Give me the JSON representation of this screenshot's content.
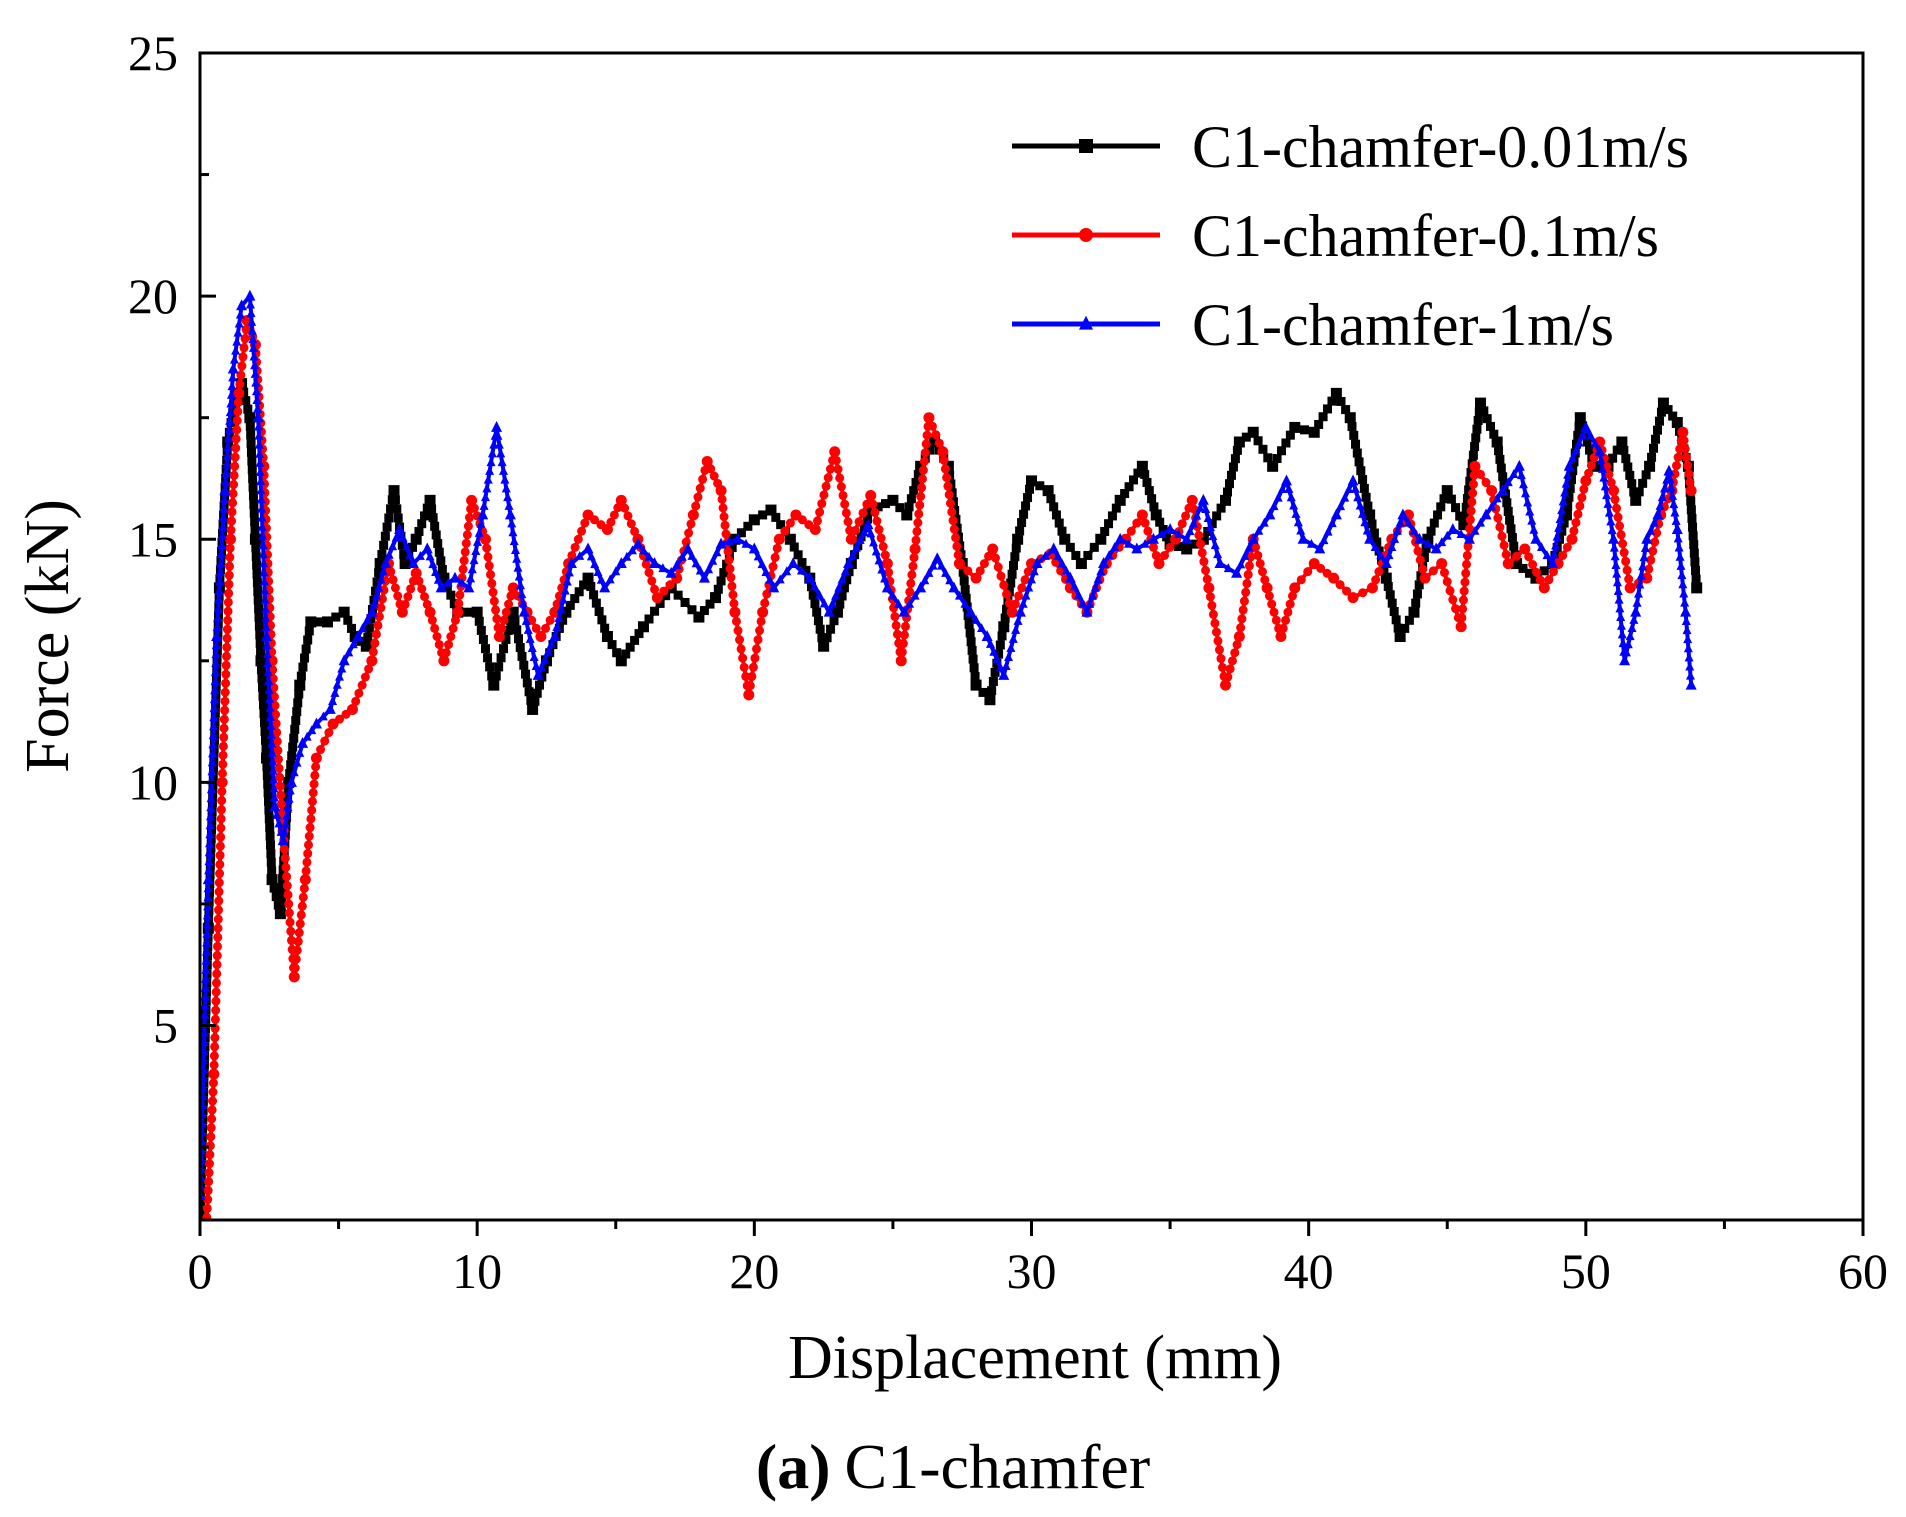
{
  "chart_data": {
    "type": "line",
    "title": "",
    "xlabel": "Displacement (mm)",
    "ylabel": "Force (kN)",
    "xlim": [
      0,
      60
    ],
    "ylim": [
      1,
      25
    ],
    "xticks": [
      0,
      10,
      20,
      30,
      40,
      50,
      60
    ],
    "yticks": [
      5,
      10,
      15,
      20,
      25
    ],
    "grid": false,
    "legend_position": "top-right",
    "caption": {
      "label": "(a)",
      "text": "C1-chamfer"
    },
    "series": [
      {
        "name": "C1-chamfer-0.01m/s",
        "color": "#000000",
        "marker": "square",
        "x": [
          0,
          0.3,
          0.7,
          1.0,
          1.3,
          1.5,
          1.8,
          2.0,
          2.2,
          2.4,
          2.6,
          2.9,
          3.2,
          3.6,
          4.0,
          4.6,
          5.2,
          5.6,
          6.0,
          6.5,
          7.0,
          7.4,
          7.8,
          8.3,
          8.8,
          9.3,
          10.0,
          10.6,
          11.3,
          12.0,
          12.5,
          13.2,
          14.0,
          14.7,
          15.2,
          16.0,
          17.0,
          18.0,
          18.6,
          19.3,
          20.0,
          20.6,
          21.3,
          22.0,
          22.5,
          23.0,
          23.5,
          24.2,
          25.0,
          25.5,
          26.0,
          26.5,
          27.0,
          27.5,
          28.0,
          28.5,
          29.0,
          29.5,
          30.0,
          30.6,
          31.2,
          31.8,
          32.5,
          33.2,
          34.0,
          34.5,
          35.0,
          35.6,
          36.2,
          37.0,
          37.5,
          38.0,
          38.7,
          39.5,
          40.2,
          41.0,
          41.5,
          42.2,
          42.8,
          43.3,
          43.8,
          44.3,
          45.0,
          45.6,
          46.2,
          46.8,
          47.5,
          48.2,
          48.8,
          49.3,
          49.8,
          50.3,
          50.8,
          51.3,
          51.8,
          52.3,
          52.8,
          53.3,
          53.7,
          54.0
        ],
        "y": [
          1.0,
          7.0,
          14.0,
          17.0,
          18.0,
          18.2,
          17.5,
          15.0,
          12.5,
          10.5,
          8.0,
          7.3,
          10.0,
          12.0,
          13.3,
          13.3,
          13.5,
          13.0,
          12.8,
          14.5,
          16.0,
          14.5,
          15.0,
          15.8,
          14.2,
          13.5,
          13.5,
          12.0,
          13.5,
          11.5,
          12.5,
          13.5,
          14.2,
          13.0,
          12.5,
          13.2,
          14.0,
          13.4,
          13.8,
          15.0,
          15.4,
          15.6,
          15.0,
          14.2,
          12.8,
          13.5,
          14.5,
          15.6,
          15.8,
          15.5,
          16.5,
          17.0,
          16.5,
          14.5,
          12.0,
          11.7,
          13.2,
          15.0,
          16.2,
          16.0,
          15.0,
          14.5,
          15.0,
          15.8,
          16.5,
          15.5,
          14.9,
          14.8,
          15.0,
          15.8,
          17.0,
          17.2,
          16.5,
          17.3,
          17.2,
          18.0,
          17.5,
          15.5,
          14.2,
          13.0,
          13.5,
          15.0,
          16.0,
          15.3,
          17.8,
          17.0,
          14.5,
          14.2,
          14.5,
          15.5,
          17.5,
          16.5,
          16.5,
          17.0,
          15.8,
          16.5,
          17.8,
          17.4,
          16.5,
          14.0
        ]
      },
      {
        "name": "C1-chamfer-0.1m/s",
        "color": "#ff0000",
        "marker": "circle",
        "x": [
          0.2,
          0.5,
          0.8,
          1.1,
          1.4,
          1.7,
          2.0,
          2.3,
          2.6,
          3.0,
          3.4,
          3.8,
          4.2,
          4.8,
          5.5,
          6.2,
          6.8,
          7.3,
          7.8,
          8.3,
          8.8,
          9.3,
          9.8,
          10.3,
          10.8,
          11.3,
          11.8,
          12.3,
          12.8,
          13.3,
          14.0,
          14.7,
          15.2,
          15.8,
          16.5,
          17.2,
          17.8,
          18.3,
          18.8,
          19.3,
          19.8,
          20.3,
          20.9,
          21.5,
          22.2,
          22.9,
          23.5,
          24.2,
          24.8,
          25.3,
          25.8,
          26.3,
          26.8,
          27.4,
          28.0,
          28.6,
          29.3,
          30.0,
          30.7,
          31.4,
          32.0,
          32.7,
          33.4,
          34.0,
          34.6,
          35.2,
          35.8,
          36.4,
          37.0,
          37.5,
          38.0,
          38.5,
          39.0,
          39.5,
          40.2,
          40.9,
          41.6,
          42.3,
          43.0,
          43.6,
          44.2,
          44.8,
          45.5,
          46.0,
          46.6,
          47.2,
          47.8,
          48.5,
          49.0,
          49.5,
          50.0,
          50.5,
          51.0,
          51.6,
          52.2,
          52.7,
          53.1,
          53.5,
          53.8
        ],
        "y": [
          0.5,
          4.0,
          10.0,
          15.0,
          18.0,
          19.5,
          19.0,
          16.5,
          12.5,
          9.0,
          6.0,
          8.0,
          10.5,
          11.2,
          11.5,
          12.5,
          14.5,
          13.5,
          14.3,
          13.5,
          12.5,
          13.5,
          15.8,
          15.0,
          13.0,
          14.0,
          13.5,
          13.0,
          13.5,
          14.5,
          15.5,
          15.2,
          15.8,
          15.0,
          13.8,
          14.2,
          15.5,
          16.6,
          16.0,
          13.5,
          11.8,
          13.5,
          15.0,
          15.5,
          15.2,
          16.8,
          15.0,
          15.9,
          14.5,
          12.5,
          14.8,
          17.5,
          16.8,
          14.5,
          14.2,
          14.8,
          13.5,
          14.5,
          14.7,
          14.0,
          13.5,
          14.5,
          15.0,
          15.5,
          14.5,
          15.0,
          15.8,
          14.0,
          12.0,
          13.0,
          15.0,
          14.0,
          13.0,
          14.0,
          14.5,
          14.2,
          13.8,
          14.0,
          15.0,
          15.5,
          14.2,
          14.5,
          13.2,
          16.5,
          16.0,
          14.5,
          14.8,
          14.0,
          14.5,
          15.0,
          16.2,
          17.0,
          16.0,
          14.0,
          14.2,
          15.5,
          16.0,
          17.2,
          16.0
        ]
      },
      {
        "name": "C1-chamfer-1m/s",
        "color": "#0000ff",
        "marker": "triangle",
        "x": [
          0,
          0.3,
          0.6,
          0.9,
          1.2,
          1.5,
          1.8,
          2.1,
          2.4,
          2.7,
          3.0,
          3.3,
          3.7,
          4.2,
          4.7,
          5.2,
          5.7,
          6.2,
          6.7,
          7.2,
          7.7,
          8.2,
          8.7,
          9.2,
          9.7,
          10.2,
          10.7,
          11.2,
          11.7,
          12.2,
          12.8,
          13.4,
          14.0,
          14.6,
          15.2,
          15.8,
          16.4,
          17.0,
          17.6,
          18.2,
          18.8,
          19.4,
          20.0,
          20.7,
          21.4,
          22.0,
          22.7,
          23.4,
          24.1,
          24.8,
          25.4,
          26.0,
          26.6,
          27.2,
          27.8,
          28.4,
          29.0,
          29.6,
          30.2,
          30.8,
          31.4,
          32.0,
          32.6,
          33.2,
          33.8,
          34.4,
          35.0,
          35.6,
          36.2,
          36.8,
          37.4,
          38.0,
          38.6,
          39.2,
          39.8,
          40.4,
          41.0,
          41.6,
          42.2,
          42.8,
          43.4,
          44.0,
          44.6,
          45.2,
          45.8,
          46.4,
          47.0,
          47.6,
          48.2,
          48.8,
          49.4,
          50.0,
          50.5,
          51.0,
          51.4,
          51.8,
          52.2,
          52.6,
          53.0,
          53.3,
          53.6,
          53.8
        ],
        "y": [
          1.5,
          8.0,
          13.0,
          16.0,
          18.5,
          19.8,
          20.0,
          17.5,
          13.0,
          9.5,
          8.8,
          10.0,
          10.8,
          11.2,
          11.5,
          12.5,
          13.0,
          13.5,
          14.5,
          15.2,
          14.5,
          14.8,
          14.0,
          14.2,
          14.0,
          15.5,
          17.3,
          15.5,
          13.5,
          12.2,
          13.0,
          14.5,
          14.8,
          14.0,
          14.5,
          14.9,
          14.5,
          14.3,
          14.8,
          14.2,
          14.9,
          15.0,
          14.8,
          14.0,
          14.5,
          14.2,
          13.5,
          14.5,
          15.3,
          14.0,
          13.5,
          14.0,
          14.6,
          14.0,
          13.5,
          13.0,
          12.2,
          13.5,
          14.5,
          14.8,
          14.2,
          13.5,
          14.5,
          15.0,
          14.8,
          15.0,
          15.2,
          15.0,
          15.8,
          14.5,
          14.3,
          15.0,
          15.5,
          16.2,
          15.0,
          14.8,
          15.5,
          16.2,
          15.0,
          14.5,
          15.5,
          15.0,
          14.8,
          15.2,
          15.0,
          15.5,
          16.0,
          16.5,
          15.0,
          14.5,
          16.5,
          17.3,
          16.8,
          15.0,
          12.5,
          13.5,
          15.0,
          15.5,
          16.4,
          15.2,
          13.5,
          12.0
        ]
      }
    ]
  }
}
